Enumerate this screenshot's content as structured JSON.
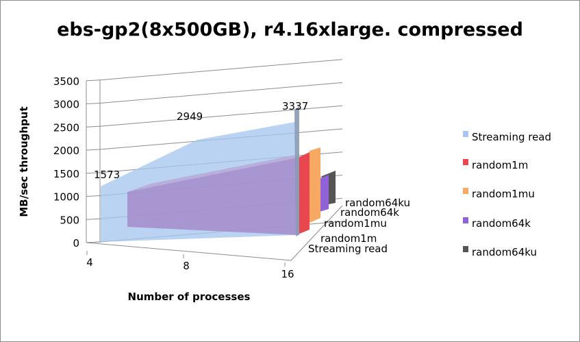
{
  "chart_data": {
    "type": "area",
    "view": "3d",
    "title": "ebs-gp2(8x500GB), r4.16xlarge. compressed",
    "xlabel": "Number of processes",
    "ylabel": "MB/sec throughput",
    "x": [
      "4",
      "8",
      "16"
    ],
    "y_ticks": [
      "0",
      "500",
      "1000",
      "1500",
      "2000",
      "2500",
      "3000",
      "3500"
    ],
    "ylim": [
      0,
      3500
    ],
    "depth_axis_labels": [
      "Streaming read",
      "random1m",
      "random1mu",
      "random64k",
      "random64ku"
    ],
    "legend_position": "right",
    "grid": true,
    "series": [
      {
        "name": "Streaming read",
        "values": [
          1573,
          2949,
          3337
        ],
        "color": "#a7c6f0",
        "labels": [
          "1573",
          "2949",
          "3337"
        ]
      },
      {
        "name": "random1m",
        "values": [
          1050,
          1280,
          1700
        ],
        "color": "#e8474f"
      },
      {
        "name": "random1mu",
        "values": [
          1050,
          1280,
          1700
        ],
        "color": "#f7a862"
      },
      {
        "name": "random64k",
        "values": [
          620,
          820,
          1000
        ],
        "color": "#8f62d8"
      },
      {
        "name": "random64ku",
        "values": [
          620,
          820,
          1000
        ],
        "color": "#555555"
      }
    ]
  }
}
